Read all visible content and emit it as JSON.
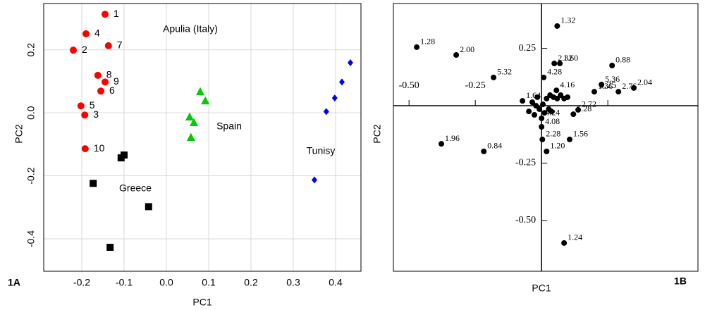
{
  "chart_data": [
    {
      "type": "scatter",
      "panel": "1A",
      "x_label": "PC1",
      "y_label": "PC2",
      "xlim": [
        -0.29,
        0.46
      ],
      "ylim": [
        -0.503,
        0.347
      ],
      "xticks": [
        -0.2,
        -0.1,
        {
          "value": 0,
          "label": "0.0"
        },
        0.1,
        0.2,
        0.3,
        0.4
      ],
      "yticks": [
        -0.4,
        -0.2,
        {
          "value": 0,
          "label": "0.0"
        },
        0.2
      ],
      "grid": true,
      "series": [
        {
          "name": "Apulia (Italy)",
          "color": "#ff0000",
          "marker": "circle",
          "x": [
            -0.145,
            -0.19,
            -0.22,
            -0.137,
            -0.162,
            -0.145,
            -0.155,
            -0.202,
            -0.193,
            -0.192
          ],
          "values": [
            0.313,
            0.251,
            0.199,
            0.213,
            0.119,
            0.098,
            0.069,
            0.022,
            -0.007,
            -0.114
          ],
          "labels": [
            "1",
            "4",
            "2",
            "7",
            "8",
            "9",
            "6",
            "5",
            "3",
            "10"
          ]
        },
        {
          "name": "Spain",
          "color": "#00cc00",
          "marker": "triangle",
          "x": [
            0.08,
            0.092,
            0.055,
            0.065,
            0.058
          ],
          "values": [
            0.067,
            0.038,
            -0.013,
            -0.031,
            -0.078
          ]
        },
        {
          "name": "Greece",
          "color": "#000000",
          "marker": "square",
          "x": [
            -0.107,
            -0.1,
            -0.173,
            -0.042,
            -0.133
          ],
          "values": [
            -0.143,
            -0.134,
            -0.224,
            -0.298,
            -0.427
          ]
        },
        {
          "name": "Tunisy",
          "color": "#0000ff",
          "marker": "diamond",
          "x": [
            0.435,
            0.415,
            0.398,
            0.378,
            0.35
          ],
          "values": [
            0.159,
            0.098,
            0.047,
            0.004,
            -0.213
          ]
        }
      ]
    },
    {
      "type": "scatter",
      "panel": "1B",
      "x_label": "PC1",
      "y_label": "PC2",
      "xlim": [
        -0.559,
        0.59
      ],
      "ylim": [
        -0.721,
        0.445
      ],
      "xticks": [
        {
          "value": -0.5,
          "label": "-0.50"
        },
        -0.25,
        0.25
      ],
      "yticks": [
        {
          "value": -0.5,
          "label": "-0.50"
        },
        -0.25,
        0.25
      ],
      "grid": false,
      "series": [
        {
          "name": null,
          "color": "#000000",
          "marker": "circle",
          "x": [
            0.059,
            -0.471,
            -0.322,
            0.266,
            0.048,
            0.069,
            -0.181,
            0.008,
            0.226,
            0.348,
            0.29,
            0.199,
            0.056,
            -0.072,
            0.138,
            0.12,
            0,
            0,
            0.003,
            0.106,
            0.019,
            -0.378,
            -0.218,
            0.085,
            -0.035,
            -0.021,
            -0.008,
            0.005,
            0.019,
            0.032,
            0.045,
            0.059,
            0.072,
            0.085,
            0.098,
            0.027,
            0.037,
            0.011,
            -0.048,
            -0.016,
            -0.027
          ],
          "values": [
            0.347,
            0.255,
            0.221,
            0.175,
            0.184,
            0.184,
            0.123,
            0.123,
            0.092,
            0.077,
            0.061,
            0.061,
            0.067,
            0.021,
            -0.018,
            -0.037,
            -0.055,
            -0.092,
            -0.147,
            -0.147,
            -0.199,
            -0.166,
            -0.199,
            -0.598,
            0.015,
            0,
            -0.015,
            0.006,
            0.031,
            0.046,
            0.037,
            0.031,
            0.046,
            0.031,
            0.037,
            -0.015,
            -0.025,
            -0.031,
            -0.025,
            0.037,
            -0.04
          ],
          "labels": [
            "1.32",
            "1.28",
            "2.00",
            "0.88",
            "2.32",
            "1.60",
            "5.32",
            "4.28",
            "5.36",
            "2.04",
            "2.76",
            "1.36",
            "4.16",
            "1.64",
            "2.72",
            "5.28",
            "4.24",
            "4.08",
            "2.28",
            "1.56",
            "1.20",
            "1.96",
            "0.84",
            "1.24",
            null,
            null,
            null,
            null,
            null,
            null,
            null,
            null,
            null,
            null,
            null,
            null,
            null,
            null,
            null,
            null,
            null
          ]
        }
      ]
    }
  ]
}
